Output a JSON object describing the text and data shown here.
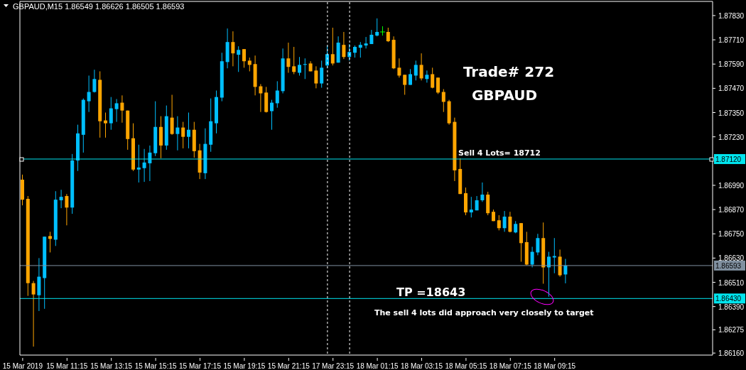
{
  "chart_data": {
    "type": "candlestick",
    "title": "GBPAUD,M15  1.86549 1.86626 1.86505 1.86593",
    "categories": [
      "15 Mar 2019",
      null,
      null,
      null,
      null,
      null,
      null,
      null,
      "15 Mar 11:15",
      null,
      null,
      null,
      null,
      null,
      null,
      null,
      "15 Mar 13:15",
      null,
      null,
      null,
      null,
      null,
      null,
      null,
      "15 Mar 15:15",
      null,
      null,
      null,
      null,
      null,
      null,
      null,
      "15 Mar 17:15",
      null,
      null,
      null,
      null,
      null,
      null,
      null,
      "15 Mar 19:15",
      null,
      null,
      null,
      null,
      null,
      null,
      null,
      "15 Mar 21:15",
      null,
      null,
      null,
      null,
      null,
      null,
      null,
      "17 Mar 23:15",
      null,
      null,
      null,
      null,
      null,
      null,
      null,
      "18 Mar 01:15",
      null,
      null,
      null,
      null,
      null,
      null,
      null,
      "18 Mar 03:15",
      null,
      null,
      null,
      null,
      null,
      null,
      null,
      "18 Mar 05:15",
      null,
      null,
      null,
      null,
      null,
      null,
      null,
      "18 Mar 07:15",
      null,
      null,
      null,
      null,
      null,
      null,
      null,
      "18 Mar 09:15",
      null,
      null,
      null,
      null,
      null,
      null,
      null,
      null,
      null,
      null,
      null,
      null,
      null,
      null,
      null,
      null,
      null,
      null,
      null,
      null,
      null,
      null,
      null,
      null,
      null,
      null,
      null,
      null
    ],
    "ohlc": [
      [
        1.87018,
        1.87043,
        1.86891,
        1.86919
      ],
      [
        1.86923,
        1.86937,
        1.86443,
        1.86506
      ],
      [
        1.86506,
        1.86517,
        1.86192,
        1.8645
      ],
      [
        1.86446,
        1.8663,
        1.86368,
        1.86538
      ],
      [
        1.86531,
        1.86736,
        1.86379,
        1.86736
      ],
      [
        1.86739,
        1.8676,
        1.86658,
        1.86725
      ],
      [
        1.86721,
        1.86961,
        1.8669,
        1.86919
      ],
      [
        1.86916,
        1.86968,
        1.86877,
        1.86933
      ],
      [
        1.86937,
        1.86947,
        1.86792,
        1.8688
      ],
      [
        1.8688,
        1.87145,
        1.86849,
        1.87113
      ],
      [
        1.87113,
        1.8729,
        1.87061,
        1.87247
      ],
      [
        1.8724,
        1.8742,
        1.87152,
        1.87413
      ],
      [
        1.87406,
        1.87533,
        1.87353,
        1.87452
      ],
      [
        1.87452,
        1.87562,
        1.87449,
        1.87516
      ],
      [
        1.87512,
        1.87554,
        1.87226,
        1.87307
      ],
      [
        1.87311,
        1.8735,
        1.87226,
        1.87297
      ],
      [
        1.87297,
        1.87427,
        1.87265,
        1.87371
      ],
      [
        1.87367,
        1.87417,
        1.87304,
        1.87396
      ],
      [
        1.87399,
        1.87435,
        1.873,
        1.8736
      ],
      [
        1.8736,
        1.8736,
        1.87166,
        1.87219
      ],
      [
        1.87223,
        1.87297,
        1.87061,
        1.87068
      ],
      [
        1.87068,
        1.87191,
        1.87004,
        1.87078
      ],
      [
        1.87075,
        1.8717,
        1.87007,
        1.87103
      ],
      [
        1.87099,
        1.87187,
        1.87011,
        1.87152
      ],
      [
        1.87149,
        1.87406,
        1.87135,
        1.87279
      ],
      [
        1.87279,
        1.87332,
        1.87124,
        1.87187
      ],
      [
        1.87187,
        1.87385,
        1.87166,
        1.87332
      ],
      [
        1.87325,
        1.87438,
        1.8724,
        1.87244
      ],
      [
        1.87244,
        1.87332,
        1.87163,
        1.87276
      ],
      [
        1.87276,
        1.87304,
        1.87173,
        1.8723
      ],
      [
        1.8723,
        1.8735,
        1.87173,
        1.87265
      ],
      [
        1.87265,
        1.87304,
        1.87127,
        1.87159
      ],
      [
        1.87163,
        1.87195,
        1.87021,
        1.87053
      ],
      [
        1.8705,
        1.87272,
        1.87021,
        1.87195
      ],
      [
        1.87191,
        1.8742,
        1.87156,
        1.87307
      ],
      [
        1.87297,
        1.87459,
        1.87247,
        1.87427
      ],
      [
        1.87424,
        1.87646,
        1.87406,
        1.87604
      ],
      [
        1.876,
        1.87766,
        1.87569,
        1.87699
      ],
      [
        1.87699,
        1.87752,
        1.87579,
        1.87643
      ],
      [
        1.87636,
        1.87678,
        1.87551,
        1.8766
      ],
      [
        1.87664,
        1.87664,
        1.87572,
        1.87604
      ],
      [
        1.87607,
        1.87622,
        1.87554,
        1.87586
      ],
      [
        1.8759,
        1.87632,
        1.87435,
        1.87477
      ],
      [
        1.8748,
        1.87491,
        1.87353,
        1.87445
      ],
      [
        1.87449,
        1.87477,
        1.8735,
        1.87353
      ],
      [
        1.87357,
        1.87413,
        1.87265,
        1.87399
      ],
      [
        1.87396,
        1.87505,
        1.87374,
        1.87459
      ],
      [
        1.87456,
        1.87667,
        1.87445,
        1.87618
      ],
      [
        1.87618,
        1.87696,
        1.87547,
        1.87576
      ],
      [
        1.87579,
        1.87675,
        1.8754,
        1.87551
      ],
      [
        1.87547,
        1.87625,
        1.87533,
        1.87586
      ],
      [
        1.87586,
        1.87618,
        1.87516,
        1.8759
      ],
      [
        1.87593,
        1.87604,
        1.87554,
        1.87554
      ],
      [
        1.87558,
        1.87579,
        1.8747,
        1.87494
      ],
      [
        1.87494,
        1.87607,
        1.87473,
        1.87572
      ],
      [
        1.87583,
        1.87682,
        1.87569,
        1.87639
      ],
      [
        1.87639,
        1.8777,
        1.87583,
        1.87593
      ],
      [
        1.87597,
        1.87727,
        1.87597,
        1.87696
      ],
      [
        1.87685,
        1.87749,
        1.87615,
        1.87625
      ],
      [
        1.87625,
        1.87689,
        1.87607,
        1.8765
      ],
      [
        1.87646,
        1.87682,
        1.87622,
        1.87675
      ],
      [
        1.87671,
        1.87699,
        1.87622,
        1.87685
      ],
      [
        1.87682,
        1.87724,
        1.87667,
        1.87692
      ],
      [
        1.87689,
        1.87759,
        1.87689,
        1.87735
      ],
      [
        1.87731,
        1.87816,
        1.87727,
        1.87749
      ],
      [
        1.87749,
        1.87777,
        1.87731,
        1.87749
      ],
      [
        1.87749,
        1.8777,
        1.87699,
        1.87703
      ],
      [
        1.8771,
        1.87727,
        1.87565,
        1.87569
      ],
      [
        1.87572,
        1.87618,
        1.87523,
        1.87533
      ],
      [
        1.87537,
        1.87537,
        1.87438,
        1.87487
      ],
      [
        1.87487,
        1.87565,
        1.87487,
        1.8754
      ],
      [
        1.87533,
        1.87607,
        1.87509,
        1.87586
      ],
      [
        1.87586,
        1.87643,
        1.87509,
        1.87519
      ],
      [
        1.87516,
        1.87558,
        1.87498,
        1.87537
      ],
      [
        1.8754,
        1.87572,
        1.8747,
        1.87473
      ],
      [
        1.87523,
        1.87523,
        1.87442,
        1.87449
      ],
      [
        1.87452,
        1.87466,
        1.87353,
        1.87403
      ],
      [
        1.87406,
        1.87413,
        1.8729,
        1.87297
      ],
      [
        1.87304,
        1.87325,
        1.87011,
        1.87064
      ],
      [
        1.87071,
        1.87124,
        1.86947,
        1.86947
      ],
      [
        1.86951,
        1.86979,
        1.86842,
        1.86856
      ],
      [
        1.86856,
        1.86933,
        1.86831,
        1.8687
      ],
      [
        1.86866,
        1.86937,
        1.86866,
        1.86916
      ],
      [
        1.86916,
        1.87004,
        1.86908,
        1.86944
      ],
      [
        1.86944,
        1.86958,
        1.86842,
        1.86852
      ],
      [
        1.86859,
        1.8687,
        1.86813,
        1.86813
      ],
      [
        1.86817,
        1.86842,
        1.86767,
        1.86778
      ],
      [
        1.86778,
        1.86863,
        1.8676,
        1.86835
      ],
      [
        1.86835,
        1.86859,
        1.86757,
        1.8676
      ],
      [
        1.86757,
        1.86813,
        1.86753,
        1.86799
      ],
      [
        1.86803,
        1.86803,
        1.86612,
        1.86704
      ],
      [
        1.86709,
        1.8676,
        1.86594,
        1.86598
      ],
      [
        1.86598,
        1.86686,
        1.86584,
        1.86661
      ],
      [
        1.86658,
        1.8675,
        1.86644,
        1.86729
      ],
      [
        1.86729,
        1.86806,
        1.86503,
        1.86584
      ],
      [
        1.86584,
        1.86661,
        1.86439,
        1.86637
      ],
      [
        1.86633,
        1.86729,
        1.86555,
        1.8664
      ],
      [
        1.86637,
        1.86672,
        1.86538,
        1.86545
      ],
      [
        1.86549,
        1.86626,
        1.86505,
        1.86593
      ],
      null,
      null,
      null,
      null,
      null,
      null,
      null,
      null,
      null,
      null,
      null,
      null,
      null,
      null,
      null,
      null,
      null,
      null,
      null,
      null,
      null,
      null,
      null,
      null,
      null,
      null
    ],
    "colors": [
      "#ffa500",
      "#ffa500",
      "#ffa500",
      "#00bfff",
      "#00bfff",
      "#ffa500",
      "#00bfff",
      "#00bfff",
      "#ffa500",
      "#00bfff",
      "#00bfff",
      "#00bfff",
      "#00bfff",
      "#00bfff",
      "#ffa500",
      "#ffa500",
      "#00bfff",
      "#00bfff",
      "#ffa500",
      "#ffa500",
      "#ffa500",
      "#00bfff",
      "#00bfff",
      "#00bfff",
      "#00bfff",
      "#ffa500",
      "#00bfff",
      "#ffa500",
      "#00bfff",
      "#ffa500",
      "#00bfff",
      "#ffa500",
      "#ffa500",
      "#00bfff",
      "#00bfff",
      "#00bfff",
      "#00bfff",
      "#00bfff",
      "#ffa500",
      "#00bfff",
      "#ffa500",
      "#ffa500",
      "#ffa500",
      "#ffa500",
      "#ffa500",
      "#00bfff",
      "#00bfff",
      "#00bfff",
      "#ffa500",
      "#ffa500",
      "#00bfff",
      "#00bfff",
      "#ffa500",
      "#ffa500",
      "#00bfff",
      "#00bfff",
      "#ffa500",
      "#00bfff",
      "#ffa500",
      "#00bfff",
      "#00bfff",
      "#00bfff",
      "#00bfff",
      "#00bfff",
      "#00bfff",
      "#00ff00",
      "#ffa500",
      "#ffa500",
      "#ffa500",
      "#ffa500",
      "#00bfff",
      "#00bfff",
      "#ffa500",
      "#00bfff",
      "#ffa500",
      "#ffa500",
      "#ffa500",
      "#ffa500",
      "#ffa500",
      "#ffa500",
      "#ffa500",
      "#00bfff",
      "#00bfff",
      "#00bfff",
      "#ffa500",
      "#ffa500",
      "#ffa500",
      "#00bfff",
      "#ffa500",
      "#00bfff",
      "#ffa500",
      "#ffa500",
      "#00bfff",
      "#00bfff",
      "#ffa500",
      "#00bfff",
      "#00bfff",
      "#ffa500",
      "#00bfff",
      null,
      null,
      null,
      null,
      null,
      null,
      null,
      null,
      null,
      null,
      null,
      null,
      null,
      null,
      null,
      null,
      null,
      null,
      null,
      null,
      null,
      null,
      null,
      null,
      null,
      null
    ],
    "ylim": [
      1.8615,
      1.879
    ],
    "yticks": [
      {
        "value": 1.8783,
        "label": "1.87830"
      },
      {
        "value": 1.8771,
        "label": "1.87710"
      },
      {
        "value": 1.8759,
        "label": "1.87590"
      },
      {
        "value": 1.8747,
        "label": "1.87470"
      },
      {
        "value": 1.8735,
        "label": "1.87350"
      },
      {
        "value": 1.8723,
        "label": "1.87230"
      },
      {
        "value": 1.8699,
        "label": "1.86990"
      },
      {
        "value": 1.8687,
        "label": "1.86870"
      },
      {
        "value": 1.8675,
        "label": "1.86750"
      },
      {
        "value": 1.8663,
        "label": "1.86630"
      },
      {
        "value": 1.8651,
        "label": "1.86510"
      },
      {
        "value": 1.8639,
        "label": "1.86390"
      },
      {
        "value": 1.86275,
        "label": "1.86275"
      },
      {
        "value": 1.8616,
        "label": "1.86160"
      }
    ],
    "ref_lines": [
      {
        "axis": "y",
        "value": 1.8712,
        "label": "1.87120",
        "color": "#00e5ee",
        "line_style": "solid"
      },
      {
        "axis": "y",
        "value": 1.86593,
        "label": "1.86593",
        "color": "#8090a0",
        "line_style": "solid"
      },
      {
        "axis": "y",
        "value": 1.8643,
        "label": "1.86430",
        "color": "#00e5ee",
        "line_style": "solid"
      }
    ],
    "annotations": [
      "Trade# 272",
      "GBPAUD",
      "Sell 4 Lots= 18712",
      "TP =18643",
      "The sell 4 lots did approach very closely to target"
    ]
  }
}
